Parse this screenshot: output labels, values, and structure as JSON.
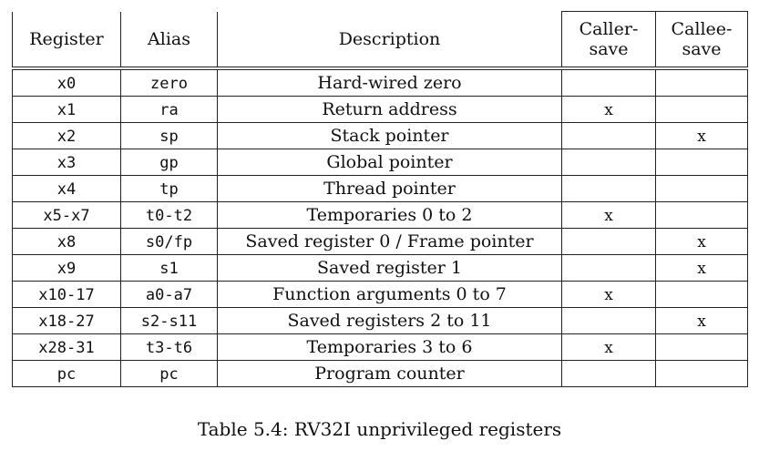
{
  "table": {
    "headers": {
      "register": "Register",
      "alias": "Alias",
      "description": "Description",
      "caller_line1": "Caller-",
      "caller_line2": "save",
      "callee_line1": "Callee-",
      "callee_line2": "save"
    },
    "rows": [
      {
        "register": "x0",
        "alias": "zero",
        "description": "Hard-wired zero",
        "caller": "",
        "callee": ""
      },
      {
        "register": "x1",
        "alias": "ra",
        "description": "Return address",
        "caller": "x",
        "callee": ""
      },
      {
        "register": "x2",
        "alias": "sp",
        "description": "Stack pointer",
        "caller": "",
        "callee": "x"
      },
      {
        "register": "x3",
        "alias": "gp",
        "description": "Global pointer",
        "caller": "",
        "callee": ""
      },
      {
        "register": "x4",
        "alias": "tp",
        "description": "Thread pointer",
        "caller": "",
        "callee": ""
      },
      {
        "register": "x5-x7",
        "alias": "t0-t2",
        "description": "Temporaries 0 to 2",
        "caller": "x",
        "callee": ""
      },
      {
        "register": "x8",
        "alias": "s0/fp",
        "description": "Saved register 0 / Frame pointer",
        "caller": "",
        "callee": "x"
      },
      {
        "register": "x9",
        "alias": "s1",
        "description": "Saved register 1",
        "caller": "",
        "callee": "x"
      },
      {
        "register": "x10-17",
        "alias": "a0-a7",
        "description": "Function arguments 0 to 7",
        "caller": "x",
        "callee": ""
      },
      {
        "register": "x18-27",
        "alias": "s2-s11",
        "description": "Saved registers 2 to 11",
        "caller": "",
        "callee": "x"
      },
      {
        "register": "x28-31",
        "alias": "t3-t6",
        "description": "Temporaries 3 to 6",
        "caller": "x",
        "callee": ""
      },
      {
        "register": "pc",
        "alias": "pc",
        "description": "Program counter",
        "caller": "",
        "callee": ""
      }
    ]
  },
  "caption": "Table 5.4: RV32I unprivileged registers"
}
